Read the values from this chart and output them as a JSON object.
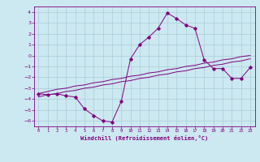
{
  "title": "",
  "xlabel": "Windchill (Refroidissement éolien,°C)",
  "x": [
    0,
    1,
    2,
    3,
    4,
    5,
    6,
    7,
    8,
    9,
    10,
    11,
    12,
    13,
    14,
    15,
    16,
    17,
    18,
    19,
    20,
    21,
    22,
    23
  ],
  "y_main": [
    -3.5,
    -3.6,
    -3.5,
    -3.7,
    -3.8,
    -4.9,
    -5.5,
    -6.0,
    -6.1,
    -4.2,
    -0.3,
    1.0,
    1.7,
    2.5,
    3.9,
    3.4,
    2.8,
    2.5,
    -0.4,
    -1.2,
    -1.2,
    -2.1,
    -2.1,
    -1.1
  ],
  "y_line1": [
    -3.5,
    -3.3,
    -3.1,
    -3.0,
    -2.8,
    -2.7,
    -2.5,
    -2.4,
    -2.2,
    -2.1,
    -1.9,
    -1.8,
    -1.6,
    -1.5,
    -1.3,
    -1.2,
    -1.0,
    -0.9,
    -0.7,
    -0.6,
    -0.4,
    -0.3,
    -0.1,
    0.0
  ],
  "y_line2": [
    -3.8,
    -3.6,
    -3.5,
    -3.3,
    -3.2,
    -3.0,
    -2.9,
    -2.7,
    -2.6,
    -2.4,
    -2.3,
    -2.1,
    -2.0,
    -1.8,
    -1.7,
    -1.5,
    -1.4,
    -1.2,
    -1.1,
    -0.9,
    -0.8,
    -0.6,
    -0.5,
    -0.3
  ],
  "line_color": "#800080",
  "bg_color": "#cce8f0",
  "grid_color": "#aacdd8",
  "ylim": [
    -6.5,
    4.5
  ],
  "yticks": [
    -6,
    -5,
    -4,
    -3,
    -2,
    -1,
    0,
    1,
    2,
    3,
    4
  ],
  "xlim": [
    -0.5,
    23.5
  ],
  "xticks": [
    0,
    1,
    2,
    3,
    4,
    5,
    6,
    7,
    8,
    9,
    10,
    11,
    12,
    13,
    14,
    15,
    16,
    17,
    18,
    19,
    20,
    21,
    22,
    23
  ]
}
